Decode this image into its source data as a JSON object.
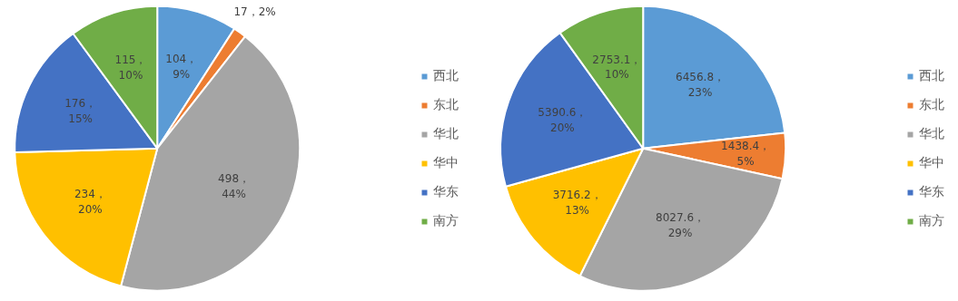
{
  "chart_data": [
    {
      "type": "pie",
      "categories": [
        "西北",
        "东北",
        "华北",
        "华中",
        "华东",
        "南方"
      ],
      "values": [
        104,
        17,
        498,
        234,
        176,
        115
      ],
      "colors": [
        "#5b9bd5",
        "#ed7d31",
        "#a5a5a5",
        "#ffc000",
        "#4472c4",
        "#70ad47"
      ],
      "value_labels": [
        "104，9%",
        "17，2%",
        "498，44%",
        "234，20%",
        "176，15%",
        "115，10%"
      ],
      "legend": "right"
    },
    {
      "type": "pie",
      "categories": [
        "西北",
        "东北",
        "华北",
        "华中",
        "华东",
        "南方"
      ],
      "values": [
        6456.8,
        1438.4,
        8027.6,
        3716.2,
        5390.6,
        2753.1
      ],
      "colors": [
        "#5b9bd5",
        "#ed7d31",
        "#a5a5a5",
        "#ffc000",
        "#4472c4",
        "#70ad47"
      ],
      "value_labels": [
        "6456.8，23%",
        "1438.4，5%",
        "8027.6，29%",
        "3716.2，13%",
        "5390.6，20%",
        "2753.1，10%"
      ],
      "legend": "right"
    }
  ]
}
